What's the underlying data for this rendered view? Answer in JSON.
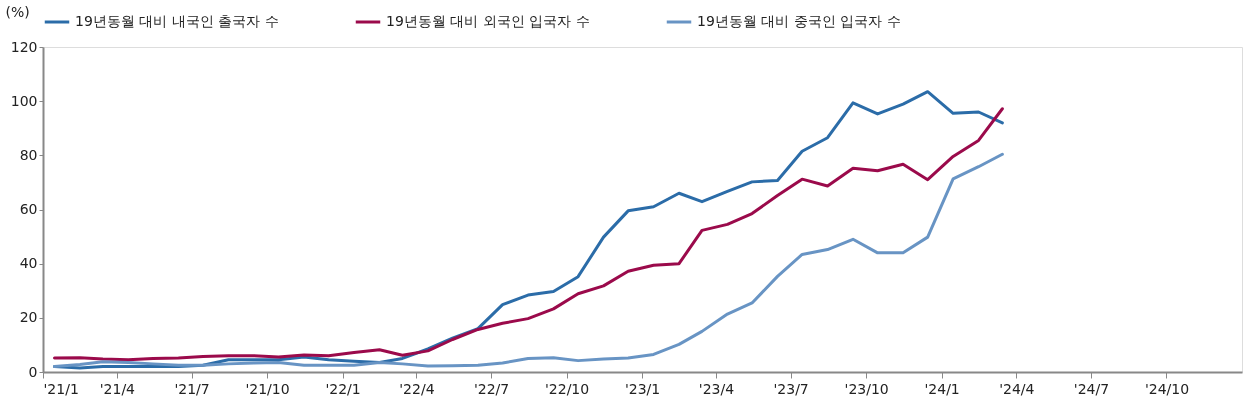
{
  "chart_data": {
    "type": "line",
    "ylabel": "(%)",
    "x": [
      "2021-01-15",
      "2021-02-15",
      "2021-03-15",
      "2021-04-15",
      "2021-05-15",
      "2021-06-15",
      "2021-07-15",
      "2021-08-15",
      "2021-09-15",
      "2021-10-15",
      "2021-11-15",
      "2021-12-15",
      "2022-01-15",
      "2022-02-15",
      "2022-03-15",
      "2022-04-15",
      "2022-05-15",
      "2022-06-15",
      "2022-07-15",
      "2022-08-15",
      "2022-09-15",
      "2022-10-15",
      "2022-11-15",
      "2022-12-15",
      "2023-01-15",
      "2023-02-15",
      "2023-03-15",
      "2023-04-15",
      "2023-05-15",
      "2023-06-15",
      "2023-07-15",
      "2023-08-15",
      "2023-09-15",
      "2023-10-15",
      "2023-11-15",
      "2023-12-15",
      "2024-01-15",
      "2024-02-15",
      "2024-03-15"
    ],
    "series": [
      {
        "name": "19년동월 대비 내국인 출국자 수",
        "color": "#2b6ca8",
        "values": [
          2,
          1.5,
          2,
          2,
          2,
          2,
          2.5,
          4.5,
          4.5,
          4.5,
          5.5,
          4.5,
          4,
          3.5,
          5,
          8.5,
          12.5,
          16,
          24.9,
          28.4,
          29.7,
          35.2,
          49.8,
          59.5,
          61,
          66,
          62.9,
          66.7,
          70.2,
          70.7,
          81.5,
          86.5,
          99.4,
          95.3,
          98.9,
          103.5,
          95.5,
          96,
          92
        ]
      },
      {
        "name": "19년동월 대비 외국인 입국자 수",
        "color": "#9b0a4b",
        "values": [
          5.2,
          5.3,
          4.8,
          4.5,
          5,
          5.2,
          5.7,
          6,
          6,
          5.5,
          6.3,
          6,
          7.2,
          8.2,
          6.2,
          7.8,
          12,
          15.7,
          18,
          19.7,
          23.3,
          28.9,
          31.8,
          37.2,
          39.4,
          40,
          52.3,
          54.5,
          58.5,
          65.2,
          71.2,
          68.7,
          75.2,
          74.3,
          76.7,
          71,
          79.6,
          85.5,
          97.2
        ]
      },
      {
        "name": "19년동월 대비 중국인 입국자 수",
        "color": "#6894c4",
        "values": [
          2,
          2.8,
          3.8,
          3.5,
          3,
          2.5,
          2.5,
          3,
          3.3,
          3.5,
          2.5,
          2.5,
          2.5,
          3.5,
          3,
          2.2,
          2.3,
          2.5,
          3.3,
          5,
          5.3,
          4.2,
          4.8,
          5.2,
          6.5,
          10.2,
          15,
          21.4,
          25.5,
          35.3,
          43.4,
          45.2,
          49,
          44,
          44,
          49.8,
          71.3,
          75.8,
          80.4
        ]
      }
    ],
    "xlim": [
      "2021-01-01",
      "2025-01-01"
    ],
    "xticks": [
      {
        "value": "2021-01-01",
        "label": "'21/1"
      },
      {
        "value": "2021-04-01",
        "label": "'21/4"
      },
      {
        "value": "2021-07-01",
        "label": "'21/7"
      },
      {
        "value": "2021-10-01",
        "label": "'21/10"
      },
      {
        "value": "2022-01-01",
        "label": "'22/1"
      },
      {
        "value": "2022-04-01",
        "label": "'22/4"
      },
      {
        "value": "2022-07-01",
        "label": "'22/7"
      },
      {
        "value": "2022-10-01",
        "label": "'22/10"
      },
      {
        "value": "2023-01-01",
        "label": "'23/1"
      },
      {
        "value": "2023-04-01",
        "label": "'23/4"
      },
      {
        "value": "2023-07-01",
        "label": "'23/7"
      },
      {
        "value": "2023-10-01",
        "label": "'23/10"
      },
      {
        "value": "2024-01-01",
        "label": "'24/1"
      },
      {
        "value": "2024-04-01",
        "label": "'24/4"
      },
      {
        "value": "2024-07-01",
        "label": "'24/7"
      },
      {
        "value": "2024-10-01",
        "label": "'24/10"
      }
    ],
    "ylim": [
      0,
      120
    ],
    "yticks": [
      0,
      20,
      40,
      60,
      80,
      100,
      120
    ],
    "grid": false,
    "legend": "top",
    "line_style": "solid",
    "marker": "none"
  }
}
